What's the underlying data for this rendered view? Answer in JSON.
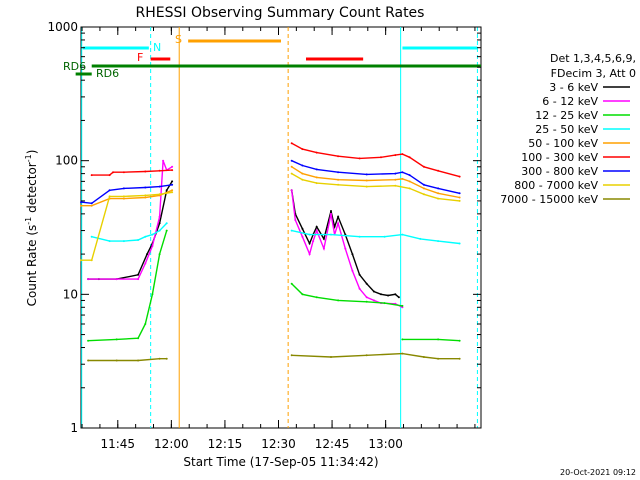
{
  "chart_data": {
    "type": "line",
    "title": "RHESSI Observing Summary Count Rates",
    "xlabel": "Start Time (17-Sep-05 11:34:42)",
    "ylabel": "Count Rate (s",
    "ylabel_sup": "-1",
    "ylabel_tail": " detector",
    "ylabel_tail_sup": "-1",
    "ylabel_close": ")",
    "yscale": "log",
    "ylim": [
      1,
      1000
    ],
    "xlim_minutes": [
      0,
      112
    ],
    "x_ticks": [
      {
        "label": "11:45",
        "minute": 10.3
      },
      {
        "label": "12:00",
        "minute": 25.3
      },
      {
        "label": "12:15",
        "minute": 40.3
      },
      {
        "label": "12:30",
        "minute": 55.3
      },
      {
        "label": "12:45",
        "minute": 70.3
      },
      {
        "label": "13:00",
        "minute": 85.3
      }
    ],
    "y_ticks": [
      {
        "label": "1",
        "value": 1
      },
      {
        "label": "10",
        "value": 10
      },
      {
        "label": "100",
        "value": 100
      },
      {
        "label": "1000",
        "value": 1000
      }
    ],
    "legend_header": [
      "Det 1,3,4,5,6,9,",
      "FDecim 3, Att 0"
    ],
    "series": [
      {
        "name": "3 - 6 keV",
        "color": "#000000",
        "segments": [
          [
            [
              2,
              13
            ],
            [
              5,
              13
            ],
            [
              10,
              13
            ],
            [
              16,
              14
            ],
            [
              18.5,
              20
            ],
            [
              20,
              24
            ],
            [
              22,
              34
            ],
            [
              24,
              60
            ],
            [
              25.5,
              70
            ]
          ],
          [
            [
              59,
              60
            ],
            [
              60,
              40
            ],
            [
              62,
              31
            ],
            [
              64,
              24
            ],
            [
              65,
              28
            ],
            [
              66,
              32
            ],
            [
              68,
              26
            ],
            [
              70,
              42
            ],
            [
              71,
              32
            ],
            [
              72,
              38
            ],
            [
              74,
              28
            ],
            [
              76,
              20
            ],
            [
              78,
              14
            ],
            [
              80,
              12
            ],
            [
              82,
              10.5
            ],
            [
              84,
              10
            ],
            [
              86,
              9.8
            ],
            [
              88,
              10
            ],
            [
              89,
              9.5
            ]
          ]
        ]
      },
      {
        "name": "6 - 12 keV",
        "color": "#ff00ff",
        "segments": [
          [
            [
              2,
              13
            ],
            [
              10,
              13
            ],
            [
              16,
              13
            ],
            [
              18,
              17
            ],
            [
              20,
              23
            ],
            [
              22,
              38
            ],
            [
              23,
              100
            ],
            [
              24,
              85
            ],
            [
              25.5,
              90
            ]
          ],
          [
            [
              59,
              60
            ],
            [
              60,
              36
            ],
            [
              62,
              27
            ],
            [
              64,
              20
            ],
            [
              65,
              25
            ],
            [
              66,
              30
            ],
            [
              68,
              22
            ],
            [
              70,
              40
            ],
            [
              71,
              28
            ],
            [
              72,
              34
            ],
            [
              74,
              22
            ],
            [
              76,
              15
            ],
            [
              78,
              11
            ],
            [
              80,
              9.5
            ],
            [
              82,
              9
            ],
            [
              84,
              8.6
            ],
            [
              88,
              8.5
            ],
            [
              90,
              8
            ]
          ]
        ]
      },
      {
        "name": "12 - 25 keV",
        "color": "#00dd00",
        "segments": [
          [
            [
              2,
              4.5
            ],
            [
              10,
              4.6
            ],
            [
              16,
              4.7
            ],
            [
              18,
              6
            ],
            [
              20,
              10
            ],
            [
              22,
              20
            ],
            [
              24,
              30
            ]
          ],
          [
            [
              59,
              12
            ],
            [
              62,
              10
            ],
            [
              66,
              9.5
            ],
            [
              72,
              9
            ],
            [
              80,
              8.8
            ],
            [
              85,
              8.6
            ],
            [
              90,
              8.2
            ]
          ],
          [
            [
              90,
              4.6
            ],
            [
              100,
              4.6
            ],
            [
              106,
              4.5
            ]
          ]
        ]
      },
      {
        "name": "25 - 50 keV",
        "color": "#00ffff",
        "segments": [
          [
            [
              3,
              27
            ],
            [
              8,
              25
            ],
            [
              12,
              25
            ],
            [
              16,
              25.5
            ],
            [
              18,
              27
            ],
            [
              20,
              28
            ],
            [
              22,
              30
            ],
            [
              24,
              34
            ]
          ],
          [
            [
              59,
              30
            ],
            [
              64,
              28
            ],
            [
              70,
              28
            ],
            [
              78,
              27
            ],
            [
              85,
              27
            ],
            [
              90,
              28
            ],
            [
              95,
              26
            ],
            [
              100,
              25
            ],
            [
              106,
              24
            ]
          ]
        ]
      },
      {
        "name": "50 - 100 keV",
        "color": "#ffa000",
        "segments": [
          [
            [
              0,
              46
            ],
            [
              3,
              46
            ],
            [
              8,
              52
            ],
            [
              12,
              52
            ],
            [
              18,
              53
            ],
            [
              22,
              55
            ],
            [
              25.5,
              60
            ]
          ],
          [
            [
              59,
              90
            ],
            [
              62,
              80
            ],
            [
              66,
              75
            ],
            [
              72,
              72
            ],
            [
              80,
              71
            ],
            [
              88,
              72
            ],
            [
              90,
              73
            ],
            [
              92,
              70
            ],
            [
              96,
              62
            ],
            [
              100,
              57
            ],
            [
              106,
              53
            ]
          ]
        ]
      },
      {
        "name": "100 - 300 keV",
        "color": "#ff0000",
        "segments": [
          [
            [
              3,
              78
            ],
            [
              8,
              78
            ],
            [
              9,
              82
            ],
            [
              12,
              82
            ],
            [
              18,
              83
            ],
            [
              22,
              84
            ],
            [
              25.5,
              85
            ]
          ],
          [
            [
              59,
              135
            ],
            [
              62,
              122
            ],
            [
              66,
              115
            ],
            [
              72,
              108
            ],
            [
              78,
              104
            ],
            [
              84,
              106
            ],
            [
              88,
              110
            ],
            [
              90,
              112
            ],
            [
              92,
              106
            ],
            [
              96,
              90
            ],
            [
              100,
              84
            ],
            [
              106,
              76
            ]
          ]
        ]
      },
      {
        "name": "300 - 800 keV",
        "color": "#0000ff",
        "segments": [
          [
            [
              0,
              49
            ],
            [
              3,
              48
            ],
            [
              8,
              60
            ],
            [
              12,
              62
            ],
            [
              18,
              63
            ],
            [
              22,
              64
            ],
            [
              25.5,
              66
            ]
          ],
          [
            [
              59,
              100
            ],
            [
              62,
              92
            ],
            [
              66,
              86
            ],
            [
              72,
              82
            ],
            [
              80,
              79
            ],
            [
              88,
              80
            ],
            [
              90,
              82
            ],
            [
              92,
              78
            ],
            [
              96,
              66
            ],
            [
              100,
              62
            ],
            [
              106,
              57
            ]
          ]
        ]
      },
      {
        "name": "800 - 7000 keV",
        "color": "#e8d000",
        "segments": [
          [
            [
              0,
              18
            ],
            [
              3,
              18
            ],
            [
              8,
              54
            ],
            [
              12,
              54
            ],
            [
              18,
              55
            ],
            [
              22,
              56
            ],
            [
              25.5,
              58
            ]
          ],
          [
            [
              59,
              80
            ],
            [
              62,
              72
            ],
            [
              66,
              68
            ],
            [
              72,
              66
            ],
            [
              80,
              64
            ],
            [
              88,
              65
            ],
            [
              92,
              62
            ],
            [
              96,
              56
            ],
            [
              100,
              52
            ],
            [
              106,
              50
            ]
          ]
        ]
      },
      {
        "name": "7000 - 15000 keV",
        "color": "#888800",
        "segments": [
          [
            [
              2,
              3.2
            ],
            [
              10,
              3.2
            ],
            [
              16,
              3.2
            ],
            [
              22,
              3.3
            ],
            [
              24,
              3.3
            ]
          ],
          [
            [
              59,
              3.5
            ],
            [
              70,
              3.4
            ],
            [
              80,
              3.5
            ],
            [
              90,
              3.6
            ],
            [
              96,
              3.4
            ],
            [
              100,
              3.3
            ],
            [
              106,
              3.3
            ]
          ]
        ]
      }
    ],
    "annotations": {
      "RD6_upper": "RD6",
      "RD6_lower": "RD6",
      "N": "N",
      "F": "F",
      "S": "S"
    }
  },
  "footer_date": "20-Oct-2021 09:12"
}
